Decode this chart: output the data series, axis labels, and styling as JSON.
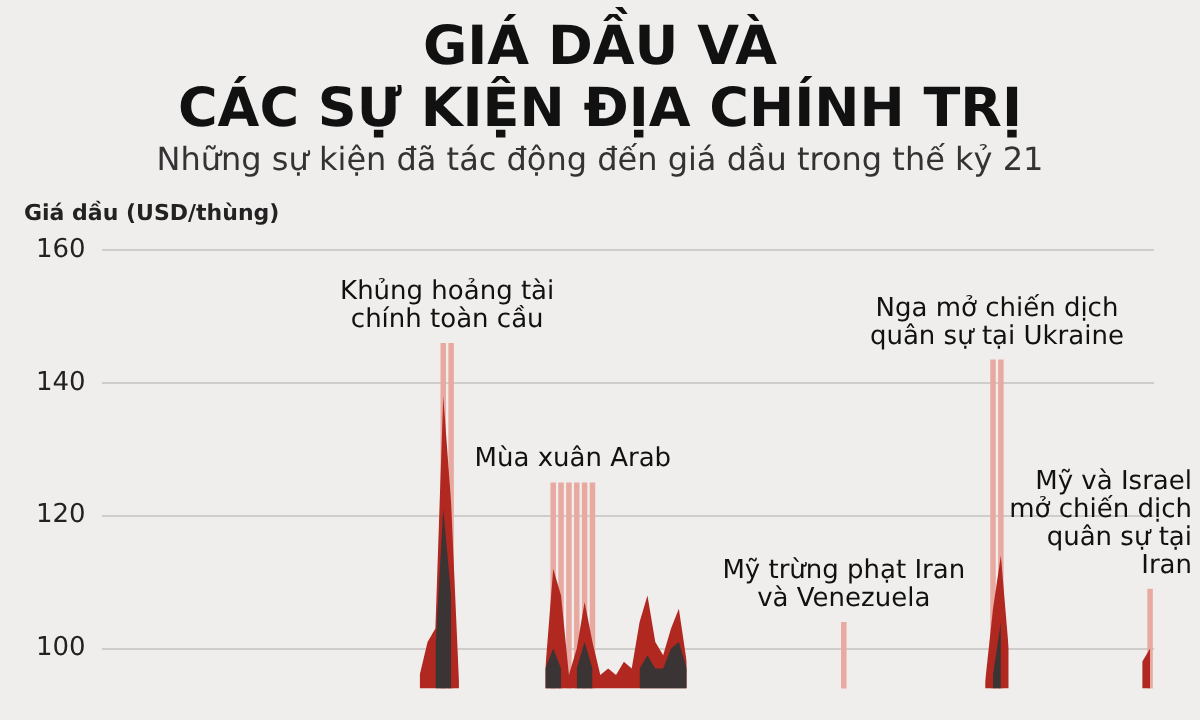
{
  "chart_data": {
    "type": "area",
    "title": "GIÁ DẦU VÀ\nCÁC SỰ KIỆN ĐỊA CHÍNH TRỊ",
    "subtitle": "Những sự kiện đã tác động đến giá dầu trong thế kỷ 21",
    "ylabel": "Giá dầu (USD/thùng)",
    "categories": [
      null,
      null,
      null,
      null,
      null,
      null,
      null,
      null,
      null,
      null,
      null,
      null,
      null,
      null,
      null,
      null,
      null,
      null,
      null,
      null,
      null,
      null,
      null,
      null,
      null,
      null,
      null,
      null,
      null,
      null,
      null,
      null,
      null,
      null,
      null,
      null,
      null,
      null,
      null,
      null,
      null,
      null,
      null,
      null,
      null,
      null,
      null,
      null,
      null,
      null,
      null,
      null,
      null,
      null,
      null,
      null,
      null,
      null,
      null,
      null,
      null,
      null,
      null,
      null,
      null,
      null,
      null,
      null,
      null,
      null,
      null,
      null,
      null,
      null,
      null,
      null,
      null,
      null,
      null,
      null,
      null,
      null,
      null,
      null,
      null,
      null,
      null,
      null,
      null,
      null,
      null,
      null,
      null,
      null,
      null,
      null,
      null,
      null,
      null,
      null,
      null,
      null,
      null,
      null,
      null,
      null,
      null,
      null,
      null,
      null,
      null,
      null,
      null,
      null,
      null,
      null,
      null,
      null,
      null,
      null,
      null,
      null,
      null,
      null,
      null,
      null,
      null,
      null,
      null,
      null,
      null,
      null,
      null,
      null
    ],
    "series": [
      {
        "color": "#3a3434",
        "values": [
          null,
          null,
          null,
          null,
          null,
          null,
          null,
          null,
          null,
          null,
          null,
          null,
          null,
          null,
          null,
          null,
          null,
          null,
          null,
          null,
          null,
          null,
          null,
          null,
          null,
          null,
          null,
          null,
          null,
          null,
          null,
          null,
          null,
          null,
          null,
          null,
          null,
          null,
          null,
          null,
          null,
          null,
          100,
          121,
          108,
          null,
          null,
          null,
          null,
          null,
          null,
          null,
          null,
          null,
          null,
          null,
          97,
          100,
          97,
          null,
          97,
          101,
          97,
          null,
          null,
          null,
          null,
          null,
          97,
          99,
          97,
          97,
          100,
          101,
          97,
          null,
          null,
          null,
          null,
          null,
          null,
          null,
          null,
          null,
          null,
          null,
          null,
          null,
          null,
          null,
          null,
          null,
          null,
          null,
          null,
          null,
          null,
          null,
          null,
          null,
          null,
          null,
          null,
          null,
          null,
          null,
          null,
          null,
          null,
          null,
          null,
          null,
          null,
          96,
          104,
          null,
          null,
          null,
          null,
          null,
          null,
          null,
          null,
          null,
          null,
          null,
          null,
          null,
          null,
          null,
          null,
          null,
          null,
          null
        ]
      },
      {
        "color": "#b0281f",
        "values": [
          null,
          null,
          null,
          null,
          null,
          null,
          null,
          null,
          null,
          null,
          null,
          null,
          null,
          null,
          null,
          null,
          null,
          null,
          null,
          null,
          null,
          null,
          null,
          null,
          null,
          null,
          null,
          null,
          null,
          null,
          null,
          null,
          null,
          null,
          null,
          null,
          null,
          null,
          null,
          null,
          96,
          101,
          103,
          138,
          122,
          95,
          null,
          null,
          null,
          null,
          null,
          null,
          null,
          null,
          null,
          null,
          97,
          112,
          108,
          96,
          100,
          107,
          101,
          96,
          97,
          96,
          98,
          97,
          104,
          108,
          101,
          99,
          103,
          106,
          98,
          null,
          null,
          null,
          null,
          null,
          null,
          null,
          null,
          null,
          null,
          null,
          null,
          null,
          null,
          null,
          null,
          null,
          null,
          null,
          null,
          null,
          null,
          null,
          null,
          null,
          null,
          null,
          null,
          null,
          null,
          null,
          null,
          null,
          null,
          null,
          null,
          null,
          95,
          106,
          114,
          100,
          null,
          null,
          null,
          null,
          null,
          null,
          null,
          null,
          null,
          null,
          null,
          null,
          null,
          null,
          null,
          null,
          98,
          100
        ]
      },
      {
        "type": "bar",
        "color": "#e8a9a1",
        "values": [
          null,
          null,
          null,
          null,
          null,
          null,
          null,
          null,
          null,
          null,
          null,
          null,
          null,
          null,
          null,
          null,
          null,
          null,
          null,
          null,
          null,
          null,
          null,
          null,
          null,
          null,
          null,
          null,
          null,
          null,
          null,
          null,
          null,
          null,
          null,
          null,
          null,
          null,
          null,
          null,
          null,
          null,
          null,
          146,
          146,
          null,
          null,
          null,
          null,
          null,
          null,
          null,
          null,
          null,
          null,
          null,
          null,
          125,
          125,
          125,
          125,
          125,
          125,
          null,
          null,
          null,
          null,
          null,
          null,
          null,
          null,
          null,
          null,
          null,
          null,
          null,
          null,
          null,
          null,
          null,
          null,
          null,
          null,
          null,
          null,
          null,
          null,
          null,
          null,
          null,
          null,
          null,
          null,
          null,
          104,
          null,
          null,
          null,
          null,
          null,
          null,
          null,
          null,
          null,
          null,
          null,
          null,
          null,
          null,
          null,
          null,
          null,
          null,
          143.5,
          143.5,
          null,
          null,
          null,
          null,
          null,
          null,
          null,
          null,
          null,
          null,
          null,
          null,
          null,
          null,
          null,
          null,
          null,
          null,
          109
        ]
      }
    ],
    "annotations": [
      "Khủng hoảng tài\nchính toàn cầu",
      "Mùa xuân Arab",
      "Mỹ trừng phạt Iran\nvà Venezuela",
      "Nga mở chiến dịch\nquân sự tại Ukraine",
      "Mỹ và Israel\nmở chiến dịch\nquân sự tại\nIran"
    ],
    "ylim": [
      94,
      160
    ],
    "yticks": [
      100,
      120,
      140,
      160
    ],
    "grid": "y",
    "legend": false
  }
}
